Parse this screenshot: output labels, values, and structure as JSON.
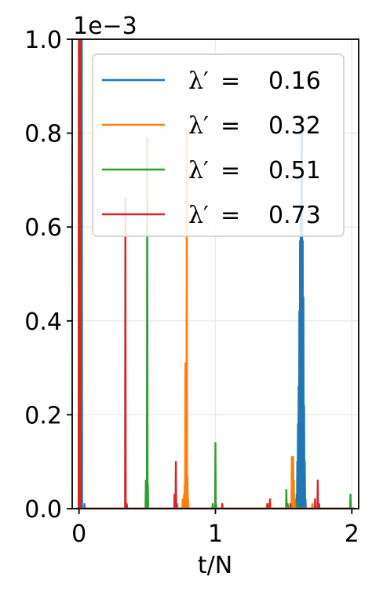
{
  "chart_data": {
    "type": "line",
    "xlabel": "t/N",
    "ylabel": "",
    "offset_text": "1e−3",
    "xlim": [
      -0.05,
      2.05
    ],
    "ylim": [
      0,
      0.001
    ],
    "x_ticks": [
      0,
      1,
      2
    ],
    "x_tick_labels": [
      "0",
      "1",
      "2"
    ],
    "y_ticks": [
      0,
      0.0002,
      0.0004,
      0.0006,
      0.0008,
      0.001
    ],
    "y_tick_labels": [
      "0.0",
      "0.2",
      "0.4",
      "0.6",
      "0.8",
      "1.0"
    ],
    "grid": true,
    "legend_placement": "top-right",
    "series": [
      {
        "name": "λ′ =  0.16",
        "legend_symbol": "λ′",
        "legend_value": "0.16",
        "color": "#1f77b4",
        "peaks": [
          {
            "t": 0.0,
            "v": 0.0012
          },
          {
            "t": 0.02,
            "v": 0.0012
          },
          {
            "t": 0.04,
            "v": 1e-05
          },
          {
            "t": 1.595,
            "v": 3e-05
          },
          {
            "t": 1.6,
            "v": 0.0001
          },
          {
            "t": 1.605,
            "v": 0.00018
          },
          {
            "t": 1.61,
            "v": 0.00026
          },
          {
            "t": 1.615,
            "v": 0.00042
          },
          {
            "t": 1.62,
            "v": 0.00057
          },
          {
            "t": 1.625,
            "v": 0.00065
          },
          {
            "t": 1.63,
            "v": 0.00084
          },
          {
            "t": 1.635,
            "v": 0.0008
          },
          {
            "t": 1.64,
            "v": 0.00057
          },
          {
            "t": 1.645,
            "v": 0.00045
          },
          {
            "t": 1.65,
            "v": 0.00022
          },
          {
            "t": 1.655,
            "v": 0.0001
          },
          {
            "t": 1.66,
            "v": 2e-05
          }
        ]
      },
      {
        "name": "λ′ =  0.32",
        "legend_symbol": "λ′",
        "legend_value": "0.32",
        "color": "#ff7f0e",
        "peaks": [
          {
            "t": 0.0,
            "v": 0.0012
          },
          {
            "t": 0.72,
            "v": 1e-05
          },
          {
            "t": 0.76,
            "v": 2e-05
          },
          {
            "t": 0.77,
            "v": 3e-05
          },
          {
            "t": 0.775,
            "v": 5e-05
          },
          {
            "t": 0.78,
            "v": 0.00031
          },
          {
            "t": 0.785,
            "v": 0.00025
          },
          {
            "t": 0.79,
            "v": 0.00081
          },
          {
            "t": 0.795,
            "v": 7e-05
          },
          {
            "t": 0.8,
            "v": 2e-05
          },
          {
            "t": 1.39,
            "v": 1e-05
          },
          {
            "t": 1.56,
            "v": 0.00011
          },
          {
            "t": 1.565,
            "v": 0.0001
          },
          {
            "t": 1.57,
            "v": 0.00011
          },
          {
            "t": 1.575,
            "v": 6e-05
          },
          {
            "t": 1.58,
            "v": 2e-05
          },
          {
            "t": 1.71,
            "v": 1e-05
          }
        ]
      },
      {
        "name": "λ′ =  0.51",
        "legend_symbol": "λ′",
        "legend_value": "0.51",
        "color": "#2ca02c",
        "peaks": [
          {
            "t": 0.0,
            "v": 0.0012
          },
          {
            "t": 0.49,
            "v": 6e-05
          },
          {
            "t": 0.5,
            "v": 0.00079
          },
          {
            "t": 0.505,
            "v": 5e-05
          },
          {
            "t": 0.98,
            "v": 1e-05
          },
          {
            "t": 1.0,
            "v": 0.00014
          },
          {
            "t": 1.005,
            "v": 1e-05
          },
          {
            "t": 1.52,
            "v": 4e-05
          },
          {
            "t": 1.53,
            "v": 1e-05
          },
          {
            "t": 1.6,
            "v": 1e-05
          },
          {
            "t": 1.99,
            "v": 3e-05
          }
        ]
      },
      {
        "name": "λ′ =  0.73",
        "legend_symbol": "λ′",
        "legend_value": "0.73",
        "color": "#d62728",
        "peaks": [
          {
            "t": 0.0,
            "v": 0.0012
          },
          {
            "t": 0.01,
            "v": 0.0012
          },
          {
            "t": 0.34,
            "v": 0.00066
          },
          {
            "t": 0.35,
            "v": 1e-05
          },
          {
            "t": 0.7,
            "v": 3e-05
          },
          {
            "t": 0.71,
            "v": 0.0001
          },
          {
            "t": 0.715,
            "v": 1e-05
          },
          {
            "t": 1.05,
            "v": 1e-05
          },
          {
            "t": 1.38,
            "v": 1e-05
          },
          {
            "t": 1.4,
            "v": 2e-05
          },
          {
            "t": 1.55,
            "v": 1e-05
          },
          {
            "t": 1.73,
            "v": 2e-05
          },
          {
            "t": 1.75,
            "v": 6e-05
          },
          {
            "t": 1.76,
            "v": 1e-05
          }
        ]
      }
    ]
  }
}
